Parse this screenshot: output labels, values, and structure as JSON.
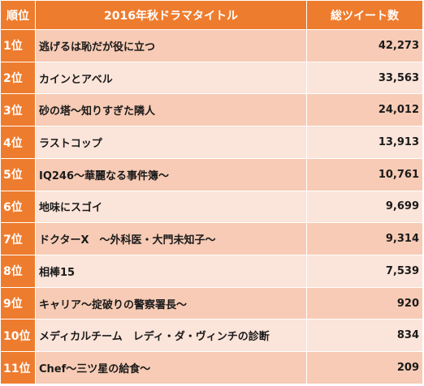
{
  "header": {
    "rank": "順位",
    "title": "2016年秋ドラマタイトル",
    "count": "総ツイート数"
  },
  "rows": [
    {
      "rank": "1位",
      "title": "逃げるは恥だが役に立つ",
      "count": "42,273"
    },
    {
      "rank": "2位",
      "title": "カインとアベル",
      "count": "33,563"
    },
    {
      "rank": "3位",
      "title": "砂の塔～知りすぎた隣人",
      "count": "24,012"
    },
    {
      "rank": "4位",
      "title": "ラストコップ",
      "count": "13,913"
    },
    {
      "rank": "5位",
      "title": "IQ246～華麗なる事件簿～",
      "count": "10,761"
    },
    {
      "rank": "6位",
      "title": "地味にスゴイ",
      "count": "9,699"
    },
    {
      "rank": "7位",
      "title": "ドクターX　～外科医・大門未知子～",
      "count": "9,314"
    },
    {
      "rank": "8位",
      "title": "相棒15",
      "count": "7,539"
    },
    {
      "rank": "9位",
      "title": "キャリア～掟破りの警察署長～",
      "count": "920"
    },
    {
      "rank": "10位",
      "title": "メディカルチーム　レディ・ダ・ヴィンチの診断",
      "count": "834"
    },
    {
      "rank": "11位",
      "title": "Chef～三ツ星の給食～",
      "count": "209"
    }
  ],
  "colors": {
    "header_bg": "#ee7c2e",
    "row_odd_bg": "#f7cbb5",
    "row_even_bg": "#fbe4d9"
  }
}
